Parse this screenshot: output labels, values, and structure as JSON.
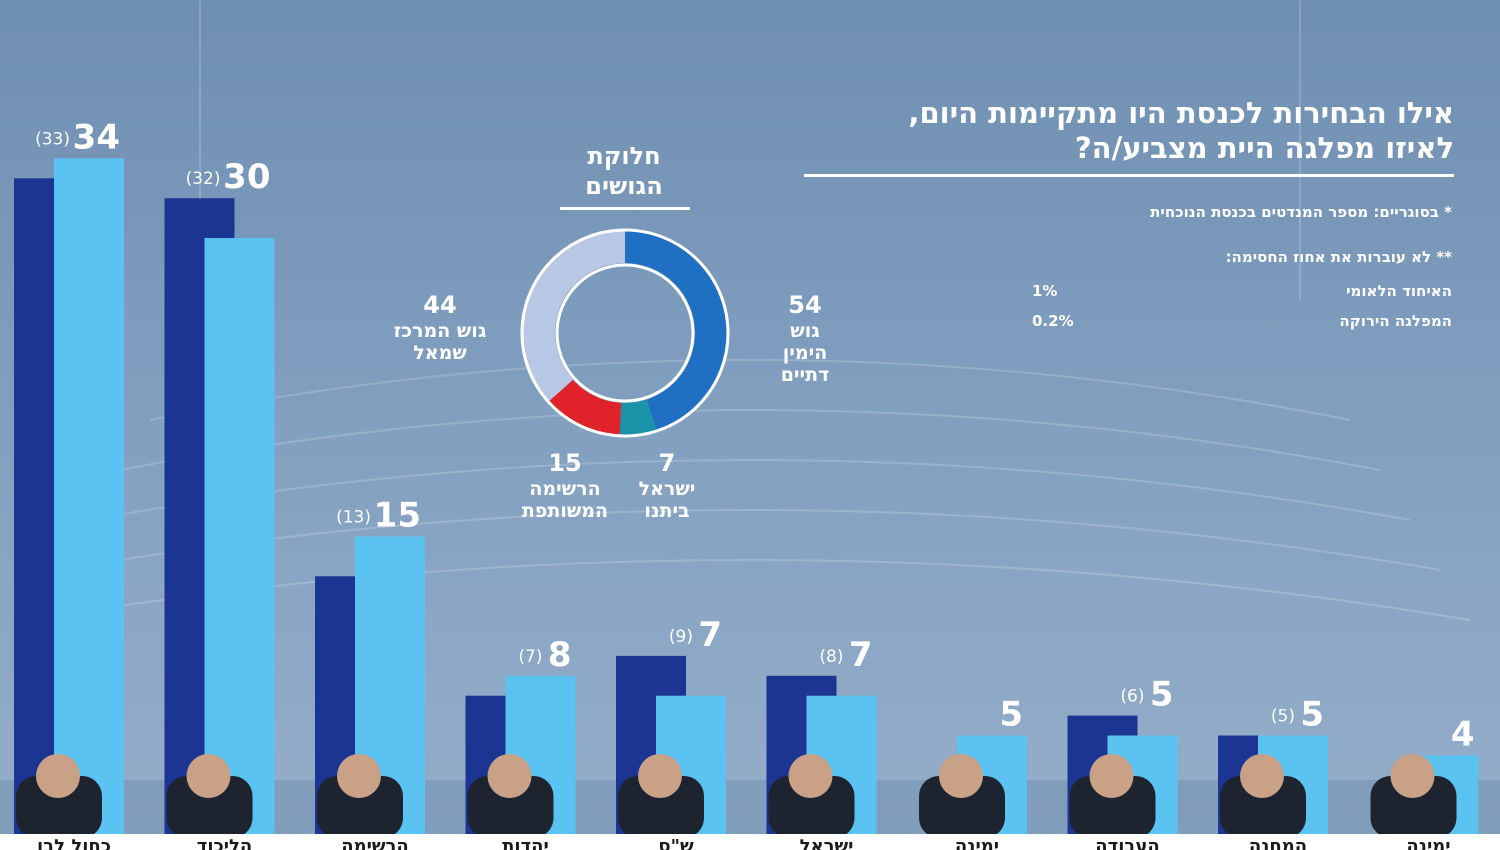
{
  "title": {
    "line1": "אילו הבחירות לכנסת היו מתקיימות היום,",
    "line2": "לאיזו מפלגה היית מצביע/ה?"
  },
  "notes": {
    "brackets": "* בסוגריים: מספר המנדטים בכנסת הנוכחית",
    "threshold_header": "** לא עוברות את אחוז החסימה:",
    "threshold_parties": [
      {
        "name": "האיחוד הלאומי",
        "value": "1%"
      },
      {
        "name": "המפלגה הירוקה",
        "value": "0.2%"
      }
    ]
  },
  "donut": {
    "title_line1": "חלוקת",
    "title_line2": "הגושים",
    "blocs": [
      {
        "value": 54,
        "label_lines": [
          "גוש",
          "הימין",
          "דתיים"
        ],
        "color": "#1f6fc3"
      },
      {
        "value": 7,
        "label_lines": [
          "ישראל",
          "ביתנו"
        ],
        "color": "#1893a8"
      },
      {
        "value": 15,
        "label_lines": [
          "הרשימה",
          "המשותפת"
        ],
        "color": "#e0232a"
      },
      {
        "value": 44,
        "label_lines": [
          "גוש המרכז",
          "שמאל"
        ],
        "color": "#b8c8e4"
      }
    ]
  },
  "chart_data": {
    "type": "bar",
    "title": "אילו הבחירות לכנסת היו מתקיימות היום, לאיזו מפלגה היית מצביע/ה?",
    "categories": [
      "כחול לבן",
      "הליכוד",
      "הרשימה",
      "יהדות",
      "ש\"ס",
      "ישראל",
      "ימינה",
      "העבודה",
      "המחנה",
      "ימינה"
    ],
    "series": [
      {
        "values": [
          33,
          32,
          13,
          7,
          9,
          8,
          null,
          6,
          5,
          null
        ],
        "color": "#1c3592"
      },
      {
        "values": [
          34,
          30,
          15,
          8,
          7,
          7,
          5,
          5,
          5,
          4
        ],
        "color": "#5bc3f1"
      }
    ],
    "value_labels": [
      "34",
      "30",
      "15",
      "8",
      "7",
      "7",
      "5",
      "5",
      "5",
      "4"
    ],
    "previous_labels": [
      "(33)",
      "(32)",
      "(13)",
      "(7)",
      "(9)",
      "(8)",
      "",
      "(6)",
      "(5)",
      ""
    ],
    "ylim": [
      0,
      40
    ]
  },
  "colors": {
    "current": "#5bc3f1",
    "previous": "#1c3592",
    "text": "#ffffff"
  }
}
